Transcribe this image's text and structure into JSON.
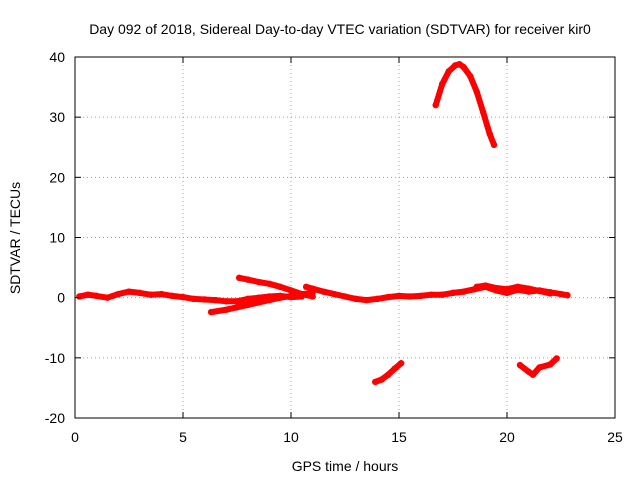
{
  "chart_data": {
    "type": "scatter",
    "title": "Day 092 of 2018, Sidereal Day-to-day VTEC variation (SDTVAR) for receiver kir0",
    "xlabel": "GPS time / hours",
    "ylabel": "SDTVAR / TECUs",
    "xlim": [
      0,
      25
    ],
    "ylim": [
      -20,
      40
    ],
    "xticks": [
      "0",
      "5",
      "10",
      "15",
      "20",
      "25"
    ],
    "yticks": [
      "-20",
      "-10",
      "0",
      "10",
      "20",
      "30",
      "40"
    ],
    "grid": true,
    "marker_color": "#ff0000",
    "series": [
      {
        "x": [
          0.2,
          0.6,
          1.0,
          1.5,
          2.0,
          2.5,
          3.0,
          3.5,
          4.0,
          4.5,
          5.0,
          5.5,
          6.0,
          6.5,
          7.0,
          7.5,
          8.0,
          8.5,
          9.0,
          9.5,
          10.0,
          10.5
        ],
        "y": [
          0.2,
          0.5,
          0.3,
          0.0,
          0.6,
          1.0,
          0.8,
          0.5,
          0.6,
          0.3,
          0.1,
          -0.2,
          -0.3,
          -0.4,
          -0.6,
          -0.6,
          -0.2,
          0.0,
          0.2,
          0.3,
          0.1,
          0.2
        ]
      },
      {
        "x": [
          6.3,
          7.0,
          7.5,
          8.0,
          8.5,
          9.0,
          9.5,
          10.0,
          10.5,
          11.0
        ],
        "y": [
          -2.4,
          -2.0,
          -1.6,
          -1.2,
          -0.8,
          -0.4,
          0.0,
          0.3,
          0.6,
          0.8
        ]
      },
      {
        "x": [
          7.6,
          8.0,
          8.5,
          9.0,
          9.5,
          10.0,
          10.5,
          11.0
        ],
        "y": [
          3.3,
          3.0,
          2.6,
          2.3,
          1.8,
          1.2,
          0.6,
          0.2
        ]
      },
      {
        "x": [
          10.7,
          11.0,
          11.5,
          12.0,
          12.5,
          13.0,
          13.5,
          14.0,
          14.5,
          15.0,
          15.5,
          16.0,
          16.5,
          17.0,
          17.5,
          18.0,
          18.5,
          19.0,
          19.5,
          20.0,
          20.5,
          21.0,
          21.5,
          22.0,
          22.5,
          22.8
        ],
        "y": [
          1.8,
          1.5,
          1.0,
          0.6,
          0.2,
          -0.2,
          -0.4,
          -0.2,
          0.1,
          0.3,
          0.2,
          0.3,
          0.5,
          0.5,
          0.8,
          1.0,
          1.4,
          1.8,
          1.2,
          0.8,
          1.3,
          1.0,
          1.2,
          0.9,
          0.6,
          0.4
        ]
      },
      {
        "x": [
          18.6,
          19.0,
          19.5,
          20.0,
          20.5,
          21.0,
          21.5,
          22.0
        ],
        "y": [
          1.8,
          2.0,
          1.6,
          1.4,
          1.8,
          1.5,
          1.1,
          0.7
        ]
      },
      {
        "x": [
          13.9,
          14.2,
          14.5,
          14.8,
          15.1
        ],
        "y": [
          -14.0,
          -13.6,
          -12.8,
          -11.8,
          -10.9
        ]
      },
      {
        "x": [
          20.6,
          21.0,
          21.2,
          21.5,
          22.0,
          22.3
        ],
        "y": [
          -11.2,
          -12.3,
          -12.8,
          -11.6,
          -11.1,
          -10.1
        ]
      },
      {
        "x": [
          16.7,
          17.0,
          17.3,
          17.6,
          17.8,
          18.0,
          18.3,
          18.6,
          18.9,
          19.2,
          19.4
        ],
        "y": [
          32.0,
          35.5,
          37.6,
          38.6,
          38.8,
          38.3,
          36.8,
          34.2,
          30.8,
          27.2,
          25.4
        ]
      }
    ]
  }
}
